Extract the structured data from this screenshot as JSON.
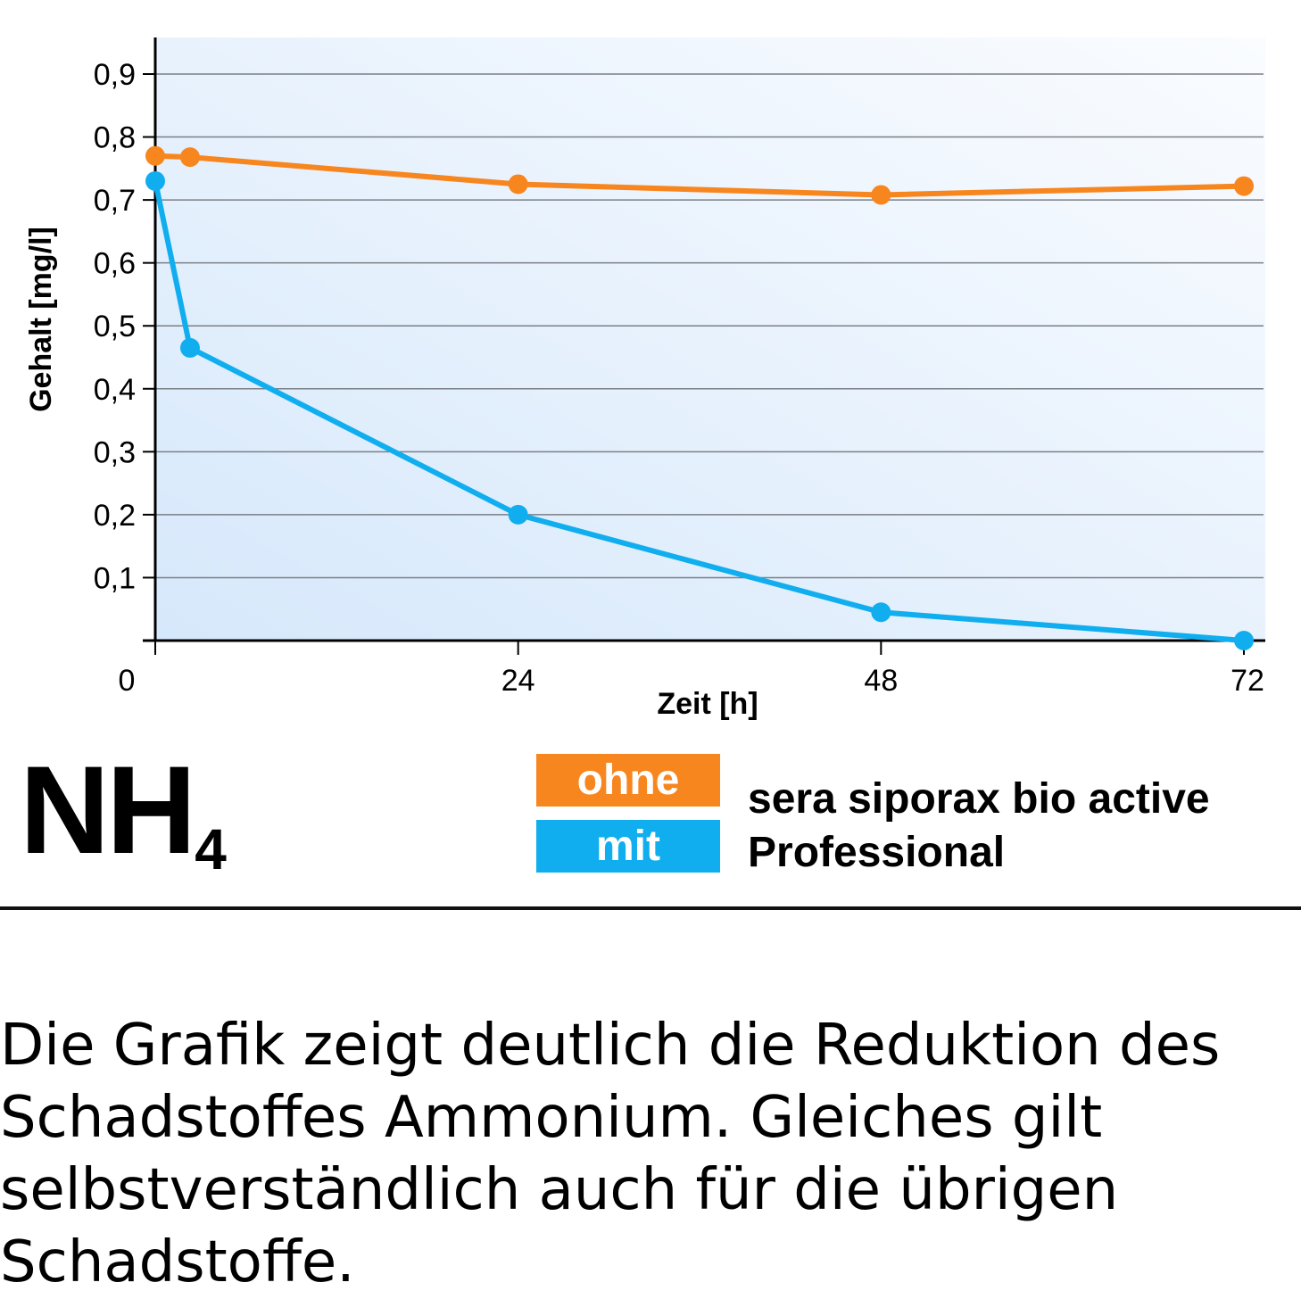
{
  "chart_data": {
    "type": "line",
    "title": "",
    "xlabel": "Zeit [h]",
    "ylabel": "Gehalt [mg/l]",
    "xlim": [
      0,
      72
    ],
    "ylim": [
      0,
      0.95
    ],
    "xticks": [
      {
        "value": 0,
        "label": "0"
      },
      {
        "value": 24,
        "label": "24"
      },
      {
        "value": 48,
        "label": "48"
      },
      {
        "value": 72,
        "label": "72"
      }
    ],
    "yticks": [
      {
        "value": 0.1,
        "label": "0,1"
      },
      {
        "value": 0.2,
        "label": "0,2"
      },
      {
        "value": 0.3,
        "label": "0,3"
      },
      {
        "value": 0.4,
        "label": "0,4"
      },
      {
        "value": 0.5,
        "label": "0,5"
      },
      {
        "value": 0.6,
        "label": "0,6"
      },
      {
        "value": 0.7,
        "label": "0,7"
      },
      {
        "value": 0.8,
        "label": "0,8"
      },
      {
        "value": 0.9,
        "label": "0,9"
      }
    ],
    "grid": "horizontal",
    "series": [
      {
        "name": "ohne",
        "color": "#F7861F",
        "points": [
          {
            "x": 0,
            "y": 0.77
          },
          {
            "x": 2.3,
            "y": 0.768
          },
          {
            "x": 24,
            "y": 0.725
          },
          {
            "x": 48,
            "y": 0.708
          },
          {
            "x": 72,
            "y": 0.722
          }
        ]
      },
      {
        "name": "mit",
        "color": "#10AEEF",
        "points": [
          {
            "x": 0,
            "y": 0.73
          },
          {
            "x": 2.3,
            "y": 0.465
          },
          {
            "x": 24,
            "y": 0.2
          },
          {
            "x": 48,
            "y": 0.045
          },
          {
            "x": 72,
            "y": 0.0
          }
        ]
      }
    ]
  },
  "formula": {
    "main": "NH",
    "sub": "4"
  },
  "legend": {
    "ohne_label": "ohne",
    "mit_label": "mit",
    "product": "sera siporax bio active\nProfessional",
    "ohne_color": "#F7861F",
    "mit_color": "#10AEEF"
  },
  "description": "Die Grafik zeigt deutlich die Reduktion des Schadstoffes Ammonium. Gleiches gilt selbstverständlich auch für die übrigen Schadstoffe."
}
